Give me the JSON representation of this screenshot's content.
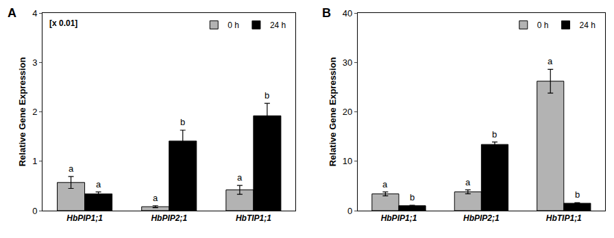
{
  "chart_data": [
    {
      "type": "bar",
      "title": "A",
      "annotations": [
        "[x 0.01]"
      ],
      "y_label": "Relative Gene Expression",
      "categories": [
        "HbPIP1;1",
        "HbPIP2;1",
        "HbTIP1;1"
      ],
      "series": [
        {
          "name": "0 h",
          "color": "#b3b3b3",
          "values": [
            0.57,
            0.08,
            0.42
          ],
          "error": [
            0.12,
            0.02,
            0.09
          ],
          "letters": [
            "a",
            "a",
            "a"
          ]
        },
        {
          "name": "24 h",
          "color": "#000000",
          "values": [
            0.34,
            1.41,
            1.92
          ],
          "error": [
            0.04,
            0.22,
            0.25
          ],
          "letters": [
            "a",
            "b",
            "b"
          ]
        }
      ],
      "ylim": [
        0,
        4
      ],
      "yticks": [
        0,
        1,
        2,
        3,
        4
      ],
      "legend": "top right"
    },
    {
      "type": "bar",
      "title": "B",
      "y_label": "Relative Gene Expression",
      "categories": [
        "HbPIP1;1",
        "HbPIP2;1",
        "HbTIP1;1"
      ],
      "series": [
        {
          "name": "0 h",
          "color": "#b3b3b3",
          "values": [
            3.4,
            3.8,
            26.2
          ],
          "error": [
            0.4,
            0.4,
            2.4
          ],
          "letters": [
            "a",
            "a",
            "a"
          ]
        },
        {
          "name": "24 h",
          "color": "#000000",
          "values": [
            1.0,
            13.4,
            1.5
          ],
          "error": [
            0.1,
            0.5,
            0.1
          ],
          "letters": [
            "b",
            "b",
            "b"
          ]
        }
      ],
      "ylim": [
        0,
        40
      ],
      "yticks": [
        0,
        10,
        20,
        30,
        40
      ],
      "legend": "top right"
    }
  ]
}
